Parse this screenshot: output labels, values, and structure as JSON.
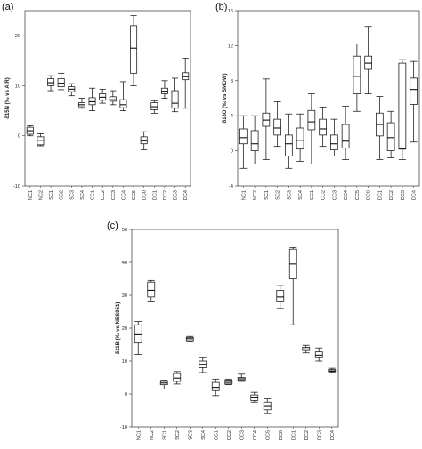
{
  "chart_data": [
    {
      "panel": "(a)",
      "type": "boxplot",
      "ylabel": "δ15N (‰ vs AIR)",
      "ylim": [
        -10,
        25
      ],
      "yticks": [
        -10,
        0,
        10,
        20
      ],
      "categories": [
        "NC1",
        "NC2",
        "SC1",
        "SC2",
        "SC3",
        "SC4",
        "CC1",
        "CC2",
        "CC3",
        "CC4",
        "CC5",
        "DC0",
        "DC1",
        "DC2",
        "DC3",
        "DC4"
      ],
      "boxes": [
        {
          "min": 0.0,
          "q1": 0.3,
          "median": 1.0,
          "q3": 1.7,
          "max": 2.0
        },
        {
          "min": -2.0,
          "q1": -1.8,
          "median": -0.9,
          "q3": -0.2,
          "max": 0.4
        },
        {
          "min": 9.0,
          "q1": 10.0,
          "median": 10.6,
          "q3": 11.4,
          "max": 12.0
        },
        {
          "min": 9.2,
          "q1": 9.8,
          "median": 10.5,
          "q3": 11.4,
          "max": 12.5
        },
        {
          "min": 8.0,
          "q1": 8.8,
          "median": 9.3,
          "q3": 9.8,
          "max": 10.4
        },
        {
          "min": 5.5,
          "q1": 5.8,
          "median": 6.2,
          "q3": 6.6,
          "max": 7.5
        },
        {
          "min": 5.0,
          "q1": 6.2,
          "median": 6.8,
          "q3": 7.6,
          "max": 9.5
        },
        {
          "min": 6.5,
          "q1": 7.1,
          "median": 7.7,
          "q3": 8.4,
          "max": 9.3
        },
        {
          "min": 6.2,
          "q1": 6.9,
          "median": 7.2,
          "q3": 7.8,
          "max": 9.0
        },
        {
          "min": 5.0,
          "q1": 5.6,
          "median": 6.2,
          "q3": 7.2,
          "max": 10.8
        },
        {
          "min": 10.0,
          "q1": 12.5,
          "median": 17.5,
          "q3": 22.0,
          "max": 24.0
        },
        {
          "min": -2.8,
          "q1": -1.6,
          "median": -1.0,
          "q3": -0.2,
          "max": 0.8
        },
        {
          "min": 4.5,
          "q1": 5.2,
          "median": 5.8,
          "q3": 6.6,
          "max": 7.0
        },
        {
          "min": 7.5,
          "q1": 8.4,
          "median": 8.9,
          "q3": 9.5,
          "max": 11.0
        },
        {
          "min": 4.8,
          "q1": 5.5,
          "median": 6.5,
          "q3": 9.0,
          "max": 11.5
        },
        {
          "min": 5.5,
          "q1": 11.2,
          "median": 11.8,
          "q3": 12.6,
          "max": 15.5
        }
      ]
    },
    {
      "panel": "(b)",
      "type": "boxplot",
      "ylabel": "δ18O (‰ vs SMOW)",
      "ylim": [
        -4,
        16
      ],
      "yticks": [
        -4,
        0,
        4,
        8,
        12,
        16
      ],
      "categories": [
        "NC1",
        "NC2",
        "SC1",
        "SC2",
        "SC3",
        "SC4",
        "CC1",
        "CC2",
        "CC3",
        "CC4",
        "CC5",
        "DC0",
        "DC1",
        "DC2",
        "DC3",
        "DC4"
      ],
      "boxes": [
        {
          "min": -2.0,
          "q1": 0.8,
          "median": 1.5,
          "q3": 2.5,
          "max": 4.0
        },
        {
          "min": -1.5,
          "q1": 0.0,
          "median": 0.8,
          "q3": 2.3,
          "max": 4.0
        },
        {
          "min": -1.0,
          "q1": 2.8,
          "median": 3.5,
          "q3": 4.3,
          "max": 8.2
        },
        {
          "min": 0.5,
          "q1": 1.8,
          "median": 2.6,
          "q3": 3.6,
          "max": 5.6
        },
        {
          "min": -2.0,
          "q1": -0.6,
          "median": 0.8,
          "q3": 1.8,
          "max": 4.2
        },
        {
          "min": -1.2,
          "q1": 0.2,
          "median": 1.2,
          "q3": 2.6,
          "max": 4.2
        },
        {
          "min": -1.5,
          "q1": 2.4,
          "median": 3.3,
          "q3": 4.6,
          "max": 6.5
        },
        {
          "min": 0.5,
          "q1": 1.8,
          "median": 2.5,
          "q3": 3.6,
          "max": 5.0
        },
        {
          "min": -0.6,
          "q1": 0.1,
          "median": 0.8,
          "q3": 1.8,
          "max": 3.6
        },
        {
          "min": -1.0,
          "q1": 0.3,
          "median": 1.1,
          "q3": 3.0,
          "max": 5.1
        },
        {
          "min": 4.5,
          "q1": 6.5,
          "median": 8.5,
          "q3": 10.8,
          "max": 12.2
        },
        {
          "min": 6.5,
          "q1": 9.3,
          "median": 10.0,
          "q3": 10.8,
          "max": 14.2
        },
        {
          "min": -1.0,
          "q1": 1.7,
          "median": 3.0,
          "q3": 4.3,
          "max": 6.2
        },
        {
          "min": -0.8,
          "q1": 0.0,
          "median": 1.5,
          "q3": 3.2,
          "max": 4.5
        },
        {
          "min": -1.0,
          "q1": 0.2,
          "median": 0.2,
          "q3": 10.0,
          "max": 10.4
        },
        {
          "min": 1.0,
          "q1": 5.3,
          "median": 7.0,
          "q3": 8.3,
          "max": 10.2
        }
      ]
    },
    {
      "panel": "(c)",
      "type": "boxplot",
      "ylabel": "δ11B (‰ vs NBS951)",
      "ylim": [
        -10,
        50
      ],
      "yticks": [
        -10,
        0,
        10,
        20,
        30,
        40,
        50
      ],
      "categories": [
        "NC1",
        "NC2",
        "SC1",
        "SC2",
        "SC3",
        "SC4",
        "CC1",
        "CC2",
        "CC3",
        "CC4",
        "CC5",
        "DC0",
        "DC1",
        "DC2",
        "DC3",
        "DC4"
      ],
      "boxes": [
        {
          "min": 12.0,
          "q1": 15.5,
          "median": 18.0,
          "q3": 21.0,
          "max": 22.0
        },
        {
          "min": 28.0,
          "q1": 29.5,
          "median": 31.5,
          "q3": 34.0,
          "max": 34.5
        },
        {
          "min": 1.5,
          "q1": 2.8,
          "median": 3.3,
          "q3": 3.8,
          "max": 4.2
        },
        {
          "min": 3.0,
          "q1": 3.8,
          "median": 4.8,
          "q3": 6.2,
          "max": 6.8
        },
        {
          "min": 15.8,
          "q1": 16.2,
          "median": 16.8,
          "q3": 17.2,
          "max": 17.5
        },
        {
          "min": 6.5,
          "q1": 8.0,
          "median": 9.0,
          "q3": 10.0,
          "max": 11.0
        },
        {
          "min": -0.5,
          "q1": 1.0,
          "median": 2.0,
          "q3": 3.5,
          "max": 4.5
        },
        {
          "min": 2.8,
          "q1": 3.0,
          "median": 3.5,
          "q3": 4.2,
          "max": 4.5
        },
        {
          "min": 3.8,
          "q1": 4.2,
          "median": 4.6,
          "q3": 5.0,
          "max": 6.0
        },
        {
          "min": -2.5,
          "q1": -2.0,
          "median": -1.2,
          "q3": -0.3,
          "max": 0.5
        },
        {
          "min": -6.0,
          "q1": -4.8,
          "median": -3.8,
          "q3": -2.5,
          "max": -1.5
        },
        {
          "min": 26.0,
          "q1": 28.0,
          "median": 29.5,
          "q3": 31.5,
          "max": 33.0
        },
        {
          "min": 21.0,
          "q1": 35.0,
          "median": 39.5,
          "q3": 44.0,
          "max": 44.5
        },
        {
          "min": 12.5,
          "q1": 13.2,
          "median": 13.7,
          "q3": 14.2,
          "max": 14.8
        },
        {
          "min": 10.0,
          "q1": 11.0,
          "median": 11.8,
          "q3": 12.8,
          "max": 14.0
        },
        {
          "min": 6.5,
          "q1": 6.8,
          "median": 7.0,
          "q3": 7.4,
          "max": 7.8
        }
      ]
    }
  ]
}
